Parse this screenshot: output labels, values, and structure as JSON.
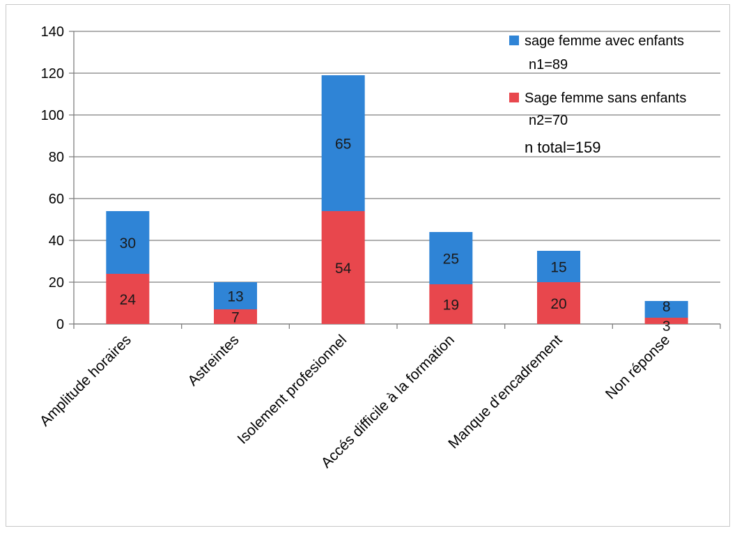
{
  "chart_data": {
    "type": "bar",
    "stacked": true,
    "categories": [
      "Amplitude horaires",
      "Astreintes",
      "Isolement profesionnel",
      "Accés difficile à la formation",
      "Manque d’encadrement",
      "Non réponse"
    ],
    "series": [
      {
        "name": "Sage femme sans enfants",
        "subtitle": "n2=70",
        "color": "#e8474d",
        "values": [
          24,
          7,
          54,
          19,
          20,
          3
        ]
      },
      {
        "name": "sage femme avec enfants",
        "subtitle": "n1=89",
        "color": "#2f84d6",
        "values": [
          30,
          13,
          65,
          25,
          15,
          8
        ]
      }
    ],
    "legend_note": "n total=159",
    "legend_position": "top-right",
    "ylim": [
      0,
      140
    ],
    "yticks": [
      0,
      20,
      40,
      60,
      80,
      100,
      120,
      140
    ],
    "grid": true,
    "title": "",
    "xlabel": "",
    "ylabel": ""
  }
}
